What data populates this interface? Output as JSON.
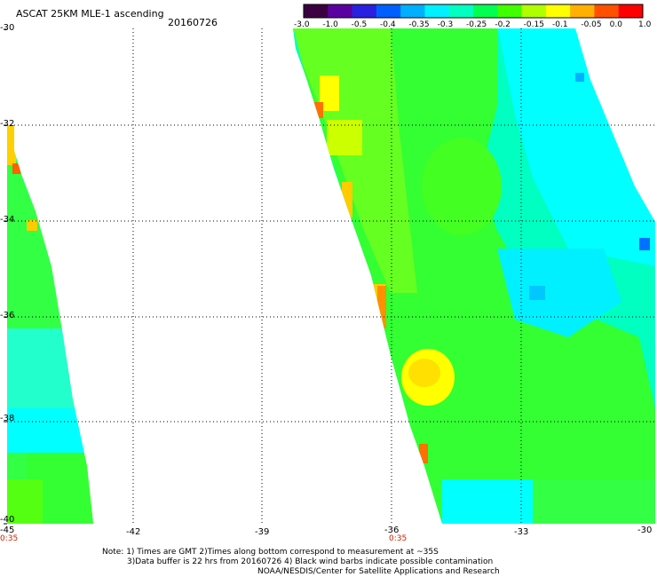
{
  "header": {
    "title": "ASCAT 25KM MLE-1 ascending",
    "date": "20160726"
  },
  "colorbar": {
    "labels": [
      "-3.0",
      "-1.0",
      "-0.5",
      "-0.4",
      "-0.35",
      "-0.3",
      "-0.25",
      "-0.2",
      "-0.15",
      "-0.1",
      "-0.05",
      "0.0",
      "1.0"
    ],
    "colors": [
      "#3a0040",
      "#5a00a0",
      "#2a20e0",
      "#0060ff",
      "#00b0ff",
      "#00f0ff",
      "#00ffc0",
      "#00ff50",
      "#40ff00",
      "#b0ff00",
      "#ffff00",
      "#ffb000",
      "#ff5000",
      "#ff0000"
    ]
  },
  "map": {
    "y_ticks": [
      "-30",
      "-32",
      "-34",
      "-36",
      "-38",
      "-40"
    ],
    "x_ticks": [
      "-45",
      "-42",
      "-39",
      "-36",
      "-33",
      "-30"
    ],
    "time_labels": [
      "0:35",
      "0:35"
    ]
  },
  "notes": {
    "line1": "Note: 1) Times are GMT 2)Times along bottom correspond to measurement at ~35S",
    "line2": "3)Data buffer is 22 hrs from 20160726 4) Black wind barbs indicate possible contamination",
    "line3": "NOAA/NESDIS/Center for Satellite Applications and Research"
  }
}
